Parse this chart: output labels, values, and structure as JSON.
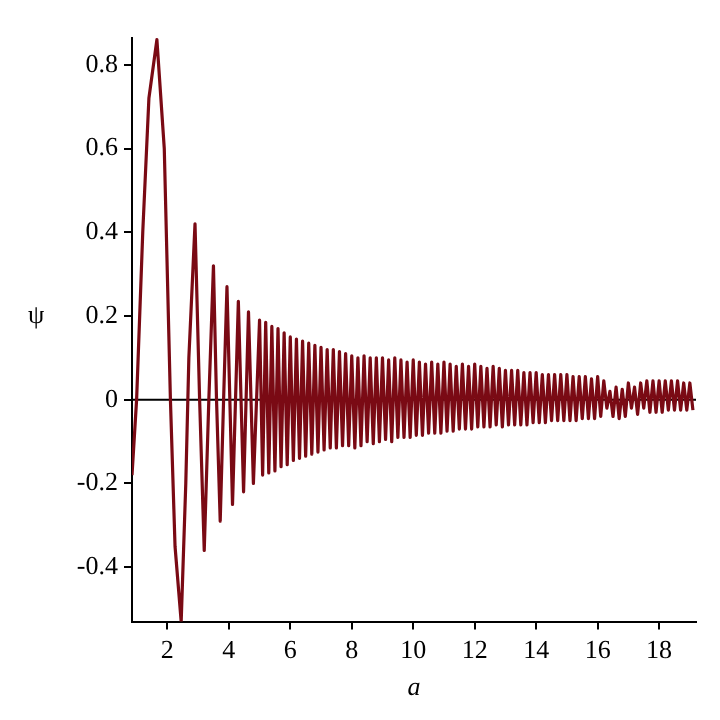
{
  "chart_data": {
    "type": "line",
    "xlabel": "a",
    "ylabel": "ψ",
    "xlim": [
      0.85,
      19.2
    ],
    "ylim": [
      -0.53,
      0.865
    ],
    "xticks": [
      2,
      4,
      6,
      8,
      10,
      12,
      14,
      16,
      18
    ],
    "yticks": [
      -0.4,
      -0.2,
      0,
      0.2,
      0.4,
      0.6,
      0.8
    ],
    "grid": false,
    "ref_lines": [
      {
        "axis": "y",
        "value": 0,
        "color": "#000000"
      }
    ],
    "legend": false,
    "marker": "none",
    "line_style": "solid",
    "x": [
      0.85,
      1.0,
      1.2,
      1.4,
      1.66,
      1.9,
      2.1,
      2.25,
      2.45,
      2.6,
      2.7,
      2.9,
      3.05,
      3.2,
      3.35,
      3.5,
      3.6,
      3.72,
      3.83,
      3.94,
      4.12,
      4.31,
      4.48,
      4.64,
      4.8,
      5.0,
      5.1,
      5.2,
      5.3,
      5.4,
      5.5,
      5.6,
      5.7,
      5.8,
      5.9,
      6.0,
      6.1,
      6.2,
      6.3,
      6.4,
      6.5,
      6.6,
      6.7,
      6.8,
      6.9,
      7.0,
      7.1,
      7.2,
      7.3,
      7.4,
      7.5,
      7.6,
      7.7,
      7.8,
      7.9,
      8.0,
      8.1,
      8.2,
      8.3,
      8.4,
      8.5,
      8.6,
      8.7,
      8.8,
      8.9,
      9.0,
      9.1,
      9.2,
      9.3,
      9.4,
      9.5,
      9.6,
      9.7,
      9.8,
      9.9,
      10.0,
      10.1,
      10.2,
      10.3,
      10.4,
      10.5,
      10.6,
      10.7,
      10.8,
      10.9,
      11.0,
      11.1,
      11.2,
      11.3,
      11.4,
      11.5,
      11.6,
      11.7,
      11.8,
      11.9,
      12.0,
      12.1,
      12.2,
      12.3,
      12.4,
      12.5,
      12.6,
      12.7,
      12.8,
      12.9,
      13.0,
      13.1,
      13.2,
      13.3,
      13.4,
      13.5,
      13.6,
      13.7,
      13.8,
      13.9,
      14.0,
      14.1,
      14.2,
      14.3,
      14.4,
      14.5,
      14.6,
      14.7,
      14.8,
      14.9,
      15.0,
      15.1,
      15.2,
      15.3,
      15.4,
      15.5,
      15.6,
      15.7,
      15.8,
      15.9,
      16.0,
      16.1,
      16.2,
      16.3,
      16.4,
      16.5,
      16.6,
      16.7,
      16.8,
      16.9,
      17.0,
      17.1,
      17.2,
      17.3,
      17.4,
      17.5,
      17.6,
      17.7,
      17.8,
      17.9,
      18.0,
      18.1,
      18.2,
      18.3,
      18.4,
      18.5,
      18.6,
      18.7,
      18.8,
      18.9,
      19.0,
      19.1
    ],
    "series": [
      {
        "color": "#7a0a14",
        "values": [
          -0.18,
          0.0,
          0.4,
          0.72,
          0.86,
          0.6,
          0.0,
          -0.35,
          -0.53,
          -0.2,
          0.1,
          0.42,
          0.0,
          -0.36,
          0.0,
          0.32,
          0.0,
          -0.29,
          0.0,
          0.27,
          -0.25,
          0.235,
          -0.22,
          0.21,
          -0.2,
          0.19,
          -0.18,
          0.185,
          -0.175,
          0.175,
          -0.17,
          0.17,
          -0.16,
          0.16,
          -0.155,
          0.15,
          -0.145,
          0.145,
          -0.14,
          0.14,
          -0.135,
          0.135,
          -0.13,
          0.13,
          -0.125,
          0.125,
          -0.12,
          0.12,
          -0.115,
          0.12,
          -0.115,
          0.115,
          -0.11,
          0.11,
          -0.11,
          0.105,
          -0.115,
          0.1,
          -0.11,
          0.105,
          -0.1,
          0.1,
          -0.105,
          0.1,
          -0.1,
          0.1,
          -0.095,
          0.095,
          -0.1,
          0.1,
          -0.09,
          0.095,
          -0.09,
          0.09,
          -0.09,
          0.095,
          -0.085,
          0.09,
          -0.085,
          0.085,
          -0.08,
          0.09,
          -0.08,
          0.085,
          -0.08,
          0.09,
          -0.075,
          0.085,
          -0.075,
          0.08,
          -0.07,
          0.085,
          -0.07,
          0.08,
          -0.07,
          0.085,
          -0.065,
          0.08,
          -0.065,
          0.075,
          -0.065,
          0.08,
          -0.06,
          0.075,
          -0.065,
          0.07,
          -0.06,
          0.07,
          -0.06,
          0.07,
          -0.06,
          0.065,
          -0.06,
          0.065,
          -0.055,
          0.065,
          -0.055,
          0.06,
          -0.055,
          0.06,
          -0.05,
          0.06,
          -0.05,
          0.06,
          -0.05,
          0.06,
          -0.05,
          0.055,
          -0.05,
          0.055,
          -0.045,
          0.055,
          -0.045,
          0.05,
          -0.045,
          0.055,
          -0.04,
          0.045,
          -0.02,
          0.02,
          -0.04,
          0.03,
          -0.045,
          0.025,
          -0.04,
          0.04,
          -0.02,
          0.03,
          -0.035,
          0.04,
          -0.02,
          0.045,
          -0.03,
          0.045,
          -0.03,
          0.045,
          -0.03,
          0.045,
          -0.025,
          0.045,
          -0.025,
          0.045,
          -0.025,
          0.04,
          -0.025,
          0.04,
          -0.025
        ]
      }
    ]
  }
}
